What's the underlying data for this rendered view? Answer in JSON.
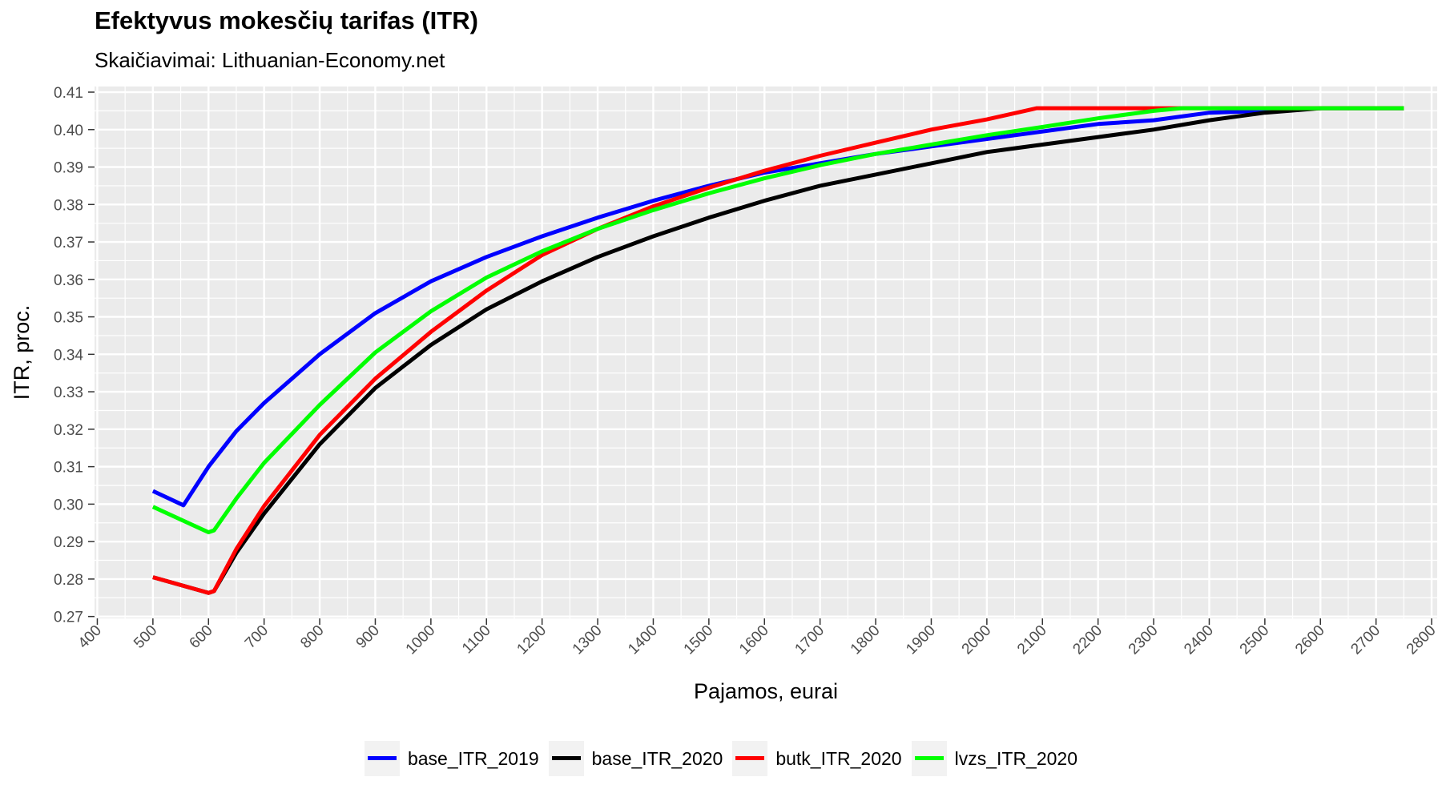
{
  "header": {
    "title": "Efektyvus mokesčių tarifas (ITR)",
    "subtitle": "Skaičiavimai: Lithuanian-Economy.net"
  },
  "chart_data": {
    "type": "line",
    "title": "Efektyvus mokesčių tarifas (ITR)",
    "subtitle": "Skaičiavimai: Lithuanian-Economy.net",
    "xlabel": "Pajamos, eurai",
    "ylabel": "ITR, proc.",
    "xlim": [
      395,
      2810
    ],
    "ylim": [
      0.2695,
      0.4115
    ],
    "x_ticks": [
      400,
      500,
      600,
      700,
      800,
      900,
      1000,
      1100,
      1200,
      1300,
      1400,
      1500,
      1600,
      1700,
      1800,
      1900,
      2000,
      2100,
      2200,
      2300,
      2400,
      2500,
      2600,
      2700,
      2800
    ],
    "y_ticks": [
      0.27,
      0.28,
      0.29,
      0.3,
      0.31,
      0.32,
      0.33,
      0.34,
      0.35,
      0.36,
      0.37,
      0.38,
      0.39,
      0.4,
      0.41
    ],
    "y_tick_labels": [
      "0.27",
      "0.28",
      "0.29",
      "0.30",
      "0.31",
      "0.32",
      "0.33",
      "0.34",
      "0.35",
      "0.36",
      "0.37",
      "0.38",
      "0.39",
      "0.40",
      "0.41"
    ],
    "grid": true,
    "legend_position": "bottom",
    "series": [
      {
        "name": "base_ITR_2019",
        "color": "#0000ff",
        "x": [
          500,
          555,
          600,
          650,
          700,
          800,
          900,
          1000,
          1100,
          1200,
          1300,
          1400,
          1500,
          1600,
          1700,
          1800,
          1900,
          2000,
          2100,
          2200,
          2300,
          2400,
          2500,
          2600,
          2750
        ],
        "y": [
          0.3035,
          0.2997,
          0.31,
          0.3195,
          0.327,
          0.34,
          0.351,
          0.3595,
          0.366,
          0.3715,
          0.3765,
          0.381,
          0.385,
          0.3885,
          0.391,
          0.3935,
          0.3955,
          0.3975,
          0.3995,
          0.4015,
          0.4025,
          0.4045,
          0.405,
          0.4057,
          0.4057
        ]
      },
      {
        "name": "base_ITR_2020",
        "color": "#000000",
        "x": [
          500,
          600,
          610,
          650,
          700,
          800,
          900,
          1000,
          1100,
          1200,
          1300,
          1400,
          1500,
          1600,
          1700,
          1800,
          1900,
          2000,
          2100,
          2200,
          2300,
          2400,
          2500,
          2600,
          2750
        ],
        "y": [
          0.2805,
          0.2763,
          0.2768,
          0.287,
          0.2975,
          0.316,
          0.331,
          0.3425,
          0.352,
          0.3595,
          0.366,
          0.3715,
          0.3765,
          0.381,
          0.385,
          0.388,
          0.391,
          0.394,
          0.396,
          0.398,
          0.4,
          0.4025,
          0.4045,
          0.4057,
          0.4057
        ]
      },
      {
        "name": "butk_ITR_2020",
        "color": "#ff0000",
        "x": [
          500,
          600,
          610,
          650,
          700,
          800,
          900,
          1000,
          1100,
          1200,
          1300,
          1400,
          1500,
          1600,
          1700,
          1800,
          1900,
          2000,
          2090,
          2300,
          2750
        ],
        "y": [
          0.2805,
          0.2763,
          0.2768,
          0.288,
          0.2995,
          0.3185,
          0.3335,
          0.346,
          0.357,
          0.3665,
          0.3735,
          0.3795,
          0.3845,
          0.389,
          0.393,
          0.3965,
          0.4,
          0.4027,
          0.4057,
          0.4057,
          0.4057
        ]
      },
      {
        "name": "lvzs_ITR_2020",
        "color": "#00ff00",
        "x": [
          500,
          600,
          610,
          650,
          700,
          800,
          900,
          1000,
          1100,
          1200,
          1300,
          1400,
          1500,
          1600,
          1700,
          1800,
          1900,
          2000,
          2100,
          2200,
          2300,
          2350,
          2750
        ],
        "y": [
          0.2993,
          0.2925,
          0.293,
          0.3015,
          0.311,
          0.3265,
          0.3405,
          0.3515,
          0.3605,
          0.3675,
          0.3735,
          0.3785,
          0.383,
          0.387,
          0.3905,
          0.3935,
          0.396,
          0.3985,
          0.4007,
          0.403,
          0.405,
          0.4057,
          0.4057
        ]
      }
    ]
  }
}
